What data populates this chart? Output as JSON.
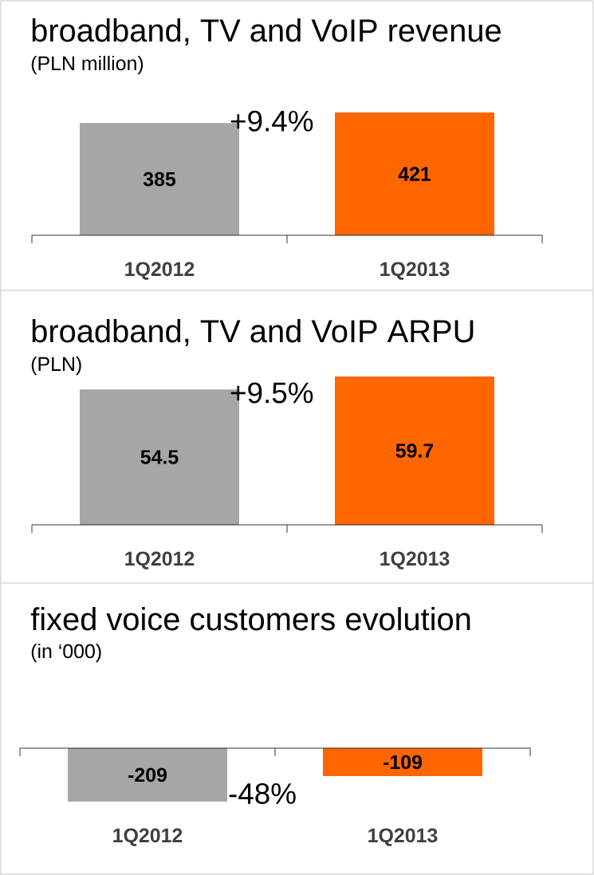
{
  "chart_data": [
    {
      "type": "bar",
      "title": "broadband, TV and VoIP revenue",
      "subtitle": "(PLN million)",
      "categories": [
        "1Q2012",
        "1Q2013"
      ],
      "values": [
        385,
        421
      ],
      "colors": [
        "#a6a6a6",
        "#ff6600"
      ],
      "data_labels": true,
      "annotations": [
        "+9.4%"
      ]
    },
    {
      "type": "bar",
      "title": "broadband, TV and VoIP ARPU",
      "subtitle": "(PLN)",
      "categories": [
        "1Q2012",
        "1Q2013"
      ],
      "values": [
        54.5,
        59.7
      ],
      "colors": [
        "#a6a6a6",
        "#ff6600"
      ],
      "data_labels": true,
      "annotations": [
        "+9.5%"
      ]
    },
    {
      "type": "bar",
      "title": "fixed voice customers evolution",
      "subtitle": "(in ‘000)",
      "categories": [
        "1Q2012",
        "1Q2013"
      ],
      "values": [
        -209,
        -109
      ],
      "colors": [
        "#a6a6a6",
        "#ff6600"
      ],
      "data_labels": true,
      "annotations": [
        "-48%"
      ]
    }
  ]
}
